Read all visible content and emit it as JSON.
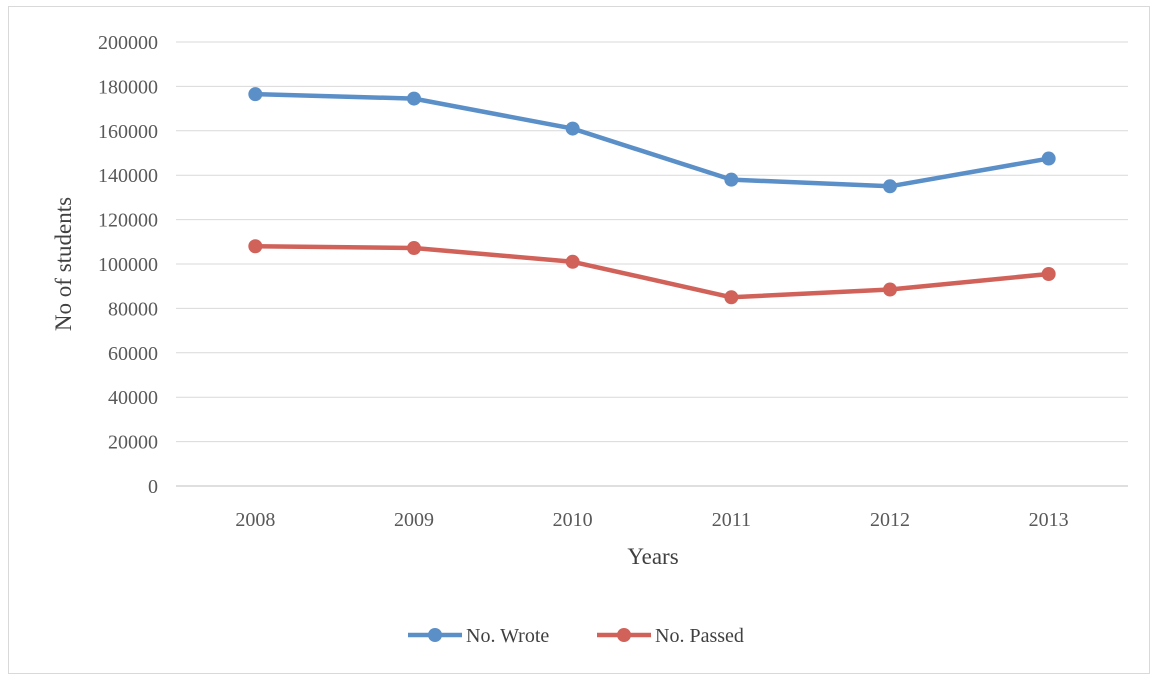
{
  "chart_data": {
    "type": "line",
    "title": "",
    "xlabel": "Years",
    "ylabel": "No of students",
    "categories": [
      "2008",
      "2009",
      "2010",
      "2011",
      "2012",
      "2013"
    ],
    "ylim": [
      0,
      200000
    ],
    "yticks": [
      "0",
      "20000",
      "40000",
      "60000",
      "80000",
      "100000",
      "120000",
      "140000",
      "160000",
      "180000",
      "200000"
    ],
    "grid": true,
    "legend_position": "bottom",
    "series": [
      {
        "name": "No. Wrote",
        "color": "#5b8fc8",
        "values": [
          176500,
          174500,
          161000,
          138000,
          135000,
          147500
        ]
      },
      {
        "name": "No. Passed",
        "color": "#d0625a",
        "values": [
          108000,
          107200,
          101000,
          85000,
          88500,
          95500
        ]
      }
    ]
  }
}
